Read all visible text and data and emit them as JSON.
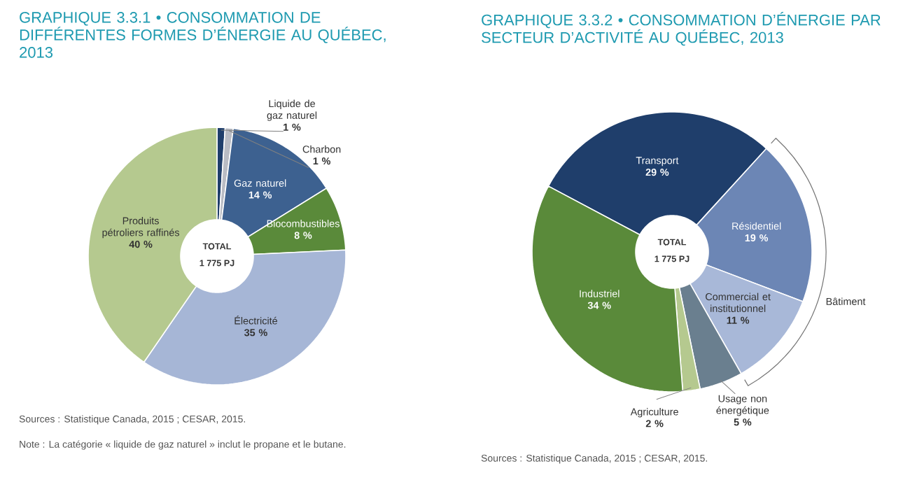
{
  "chart_data": [
    {
      "type": "donut",
      "title": "GRAPHIQUE 3.3.1 • CONSOMMATION DE DIFFÉRENTES FORMES D’ÉNERGIE AU QUÉBEC, 2013",
      "categories": [
        "Liquide de gaz naturel",
        "Charbon",
        "Gaz naturel",
        "Biocombustibles",
        "Électricité",
        "Produits pétroliers raffinés"
      ],
      "values": [
        1,
        1,
        14,
        8,
        35,
        40
      ],
      "colors": [
        "#1f3e6b",
        "#b9bcc4",
        "#3d6190",
        "#5a8a3a",
        "#a6b6d6",
        "#b5c98f"
      ],
      "value_labels": [
        "1 %",
        "1 %",
        "14 %",
        "8 %",
        "35 %",
        "40 %"
      ],
      "annotations": [
        "TOTAL",
        "1 775 PJ",
        "Sources : Statistique Canada, 2015 ; CESAR, 2015.",
        "Note : La catégorie « liquide de gaz naturel » inclut le propane et le butane."
      ]
    },
    {
      "type": "donut",
      "title": "GRAPHIQUE 3.3.2 • CONSOMMATION D’ÉNERGIE PAR SECTEUR D’ACTIVITÉ AU QUÉBEC, 2013",
      "categories": [
        "Transport",
        "Résidentiel",
        "Commercial et institutionnel",
        "Usage non énergétique",
        "Agriculture",
        "Industriel"
      ],
      "values": [
        29,
        19,
        11,
        5,
        2,
        34
      ],
      "colors": [
        "#1f3e6b",
        "#6c86b5",
        "#a8b8d8",
        "#6a7f8f",
        "#b5c98f",
        "#5a8a3a"
      ],
      "value_labels": [
        "29 %",
        "19 %",
        "11 %",
        "5 %",
        "2 %",
        "34 %"
      ],
      "annotations": [
        "TOTAL",
        "1 775 PJ",
        "Bâtiment",
        "Sources : Statistique Canada, 2015 ; CESAR, 2015."
      ]
    }
  ]
}
